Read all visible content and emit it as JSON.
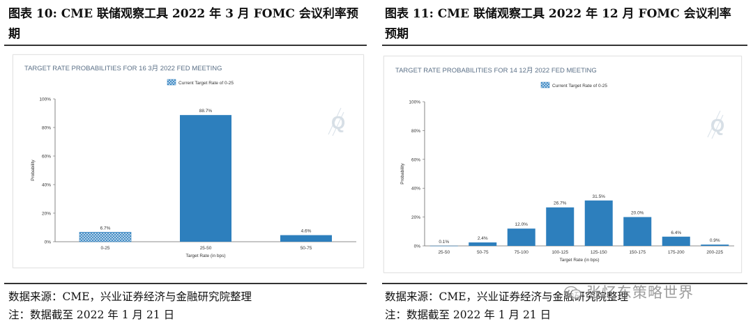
{
  "figures": [
    {
      "title": "图表 10:  CME 联储观察工具 2022 年 3 月 FOMC 会议利率预期",
      "source": "数据来源：CME，兴业证券经济与金融研究院整理",
      "note": "注：数据截至 2022 年 1 月 21 日"
    },
    {
      "title": "图表 11:  CME 联储观察工具 2022 年 12 月 FOMC 会议利率预期",
      "source": "数据来源：CME，兴业证券经济与金融研究院整理",
      "note": "注：数据截至 2022 年 1 月 21 日"
    }
  ],
  "watermark": "张忆东策略世界",
  "colors": {
    "bar": "#2d7fbd",
    "title_text": "#5a6f86",
    "axis": "#666666",
    "hatch_bg": "#cfe2f3",
    "hatch_line": "#2d7fbd"
  },
  "chart_data": [
    {
      "type": "bar",
      "title": "TARGET RATE PROBABILITIES FOR 16 3月 2022 FED MEETING",
      "legend": "Current Target Rate of 0-25",
      "xlabel": "Target Rate (in bps)",
      "ylabel": "Probability",
      "yticks": [
        "0%",
        "20%",
        "40%",
        "60%",
        "80%",
        "100%"
      ],
      "ylim": [
        0,
        100
      ],
      "categories": [
        "0-25",
        "25-50",
        "50-75"
      ],
      "values": [
        6.7,
        88.7,
        4.6
      ],
      "value_labels": [
        "6.7%",
        "88.7%",
        "4.6%"
      ],
      "current_index": 0,
      "logo": "Q"
    },
    {
      "type": "bar",
      "title": "TARGET RATE PROBABILITIES FOR 14 12月 2022 FED MEETING",
      "legend": "Current Target Rate of 0-25",
      "xlabel": "Target Rate (in bps)",
      "ylabel": "Probability",
      "yticks": [
        "0%",
        "20%",
        "40%",
        "60%",
        "80%",
        "100%"
      ],
      "ylim": [
        0,
        100
      ],
      "categories": [
        "25-50",
        "50-75",
        "75-100",
        "100-125",
        "125-150",
        "150-175",
        "175-200",
        "200-225"
      ],
      "values": [
        0.1,
        2.4,
        12.0,
        26.7,
        31.5,
        20.0,
        6.4,
        0.9
      ],
      "value_labels": [
        "0.1%",
        "2.4%",
        "12.0%",
        "26.7%",
        "31.5%",
        "20.0%",
        "6.4%",
        "0.9%"
      ],
      "current_index": -1,
      "logo": "Q"
    }
  ]
}
